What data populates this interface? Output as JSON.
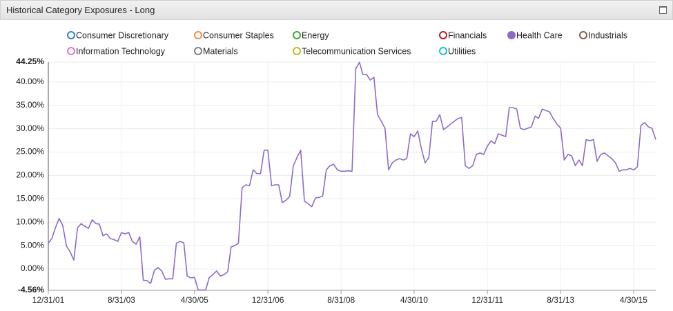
{
  "chart_data": {
    "type": "line",
    "title": "Historical Category Exposures - Long",
    "x": [
      "12/31/01",
      "1/31/02",
      "2/28/02",
      "3/31/02",
      "4/30/02",
      "5/31/02",
      "6/30/02",
      "7/31/02",
      "8/31/02",
      "9/30/02",
      "10/31/02",
      "11/30/02",
      "12/31/02",
      "1/31/03",
      "2/28/03",
      "3/31/03",
      "4/30/03",
      "5/31/03",
      "6/30/03",
      "7/31/03",
      "8/31/03",
      "9/30/03",
      "10/31/03",
      "11/30/03",
      "12/31/03",
      "1/31/04",
      "2/29/04",
      "3/31/04",
      "4/30/04",
      "5/31/04",
      "6/30/04",
      "7/31/04",
      "8/31/04",
      "9/30/04",
      "10/31/04",
      "11/30/04",
      "12/31/04",
      "1/31/05",
      "2/28/05",
      "3/31/05",
      "4/30/05",
      "5/31/05",
      "6/30/05",
      "7/31/05",
      "8/31/05",
      "9/30/05",
      "10/31/05",
      "11/30/05",
      "12/31/05",
      "1/31/06",
      "2/28/06",
      "3/31/06",
      "4/30/06",
      "5/31/06",
      "6/30/06",
      "7/31/06",
      "8/31/06",
      "9/30/06",
      "10/31/06",
      "11/30/06",
      "12/31/06",
      "1/31/07",
      "2/28/07",
      "3/31/07",
      "4/30/07",
      "5/31/07",
      "6/30/07",
      "7/31/07",
      "8/31/07",
      "9/30/07",
      "10/31/07",
      "11/30/07",
      "12/31/07",
      "1/31/08",
      "2/29/08",
      "3/31/08",
      "4/30/08",
      "5/31/08",
      "6/30/08",
      "7/31/08",
      "8/31/08",
      "9/30/08",
      "10/31/08",
      "11/30/08",
      "12/31/08",
      "1/31/09",
      "2/28/09",
      "3/31/09",
      "4/30/09",
      "5/31/09",
      "6/30/09",
      "7/31/09",
      "8/31/09",
      "9/30/09",
      "10/31/09",
      "11/30/09",
      "12/31/09",
      "1/31/10",
      "2/28/10",
      "3/31/10",
      "4/30/10",
      "5/31/10",
      "6/30/10",
      "7/31/10",
      "8/31/10",
      "9/30/10",
      "10/31/10",
      "11/30/10",
      "12/31/10",
      "1/31/11",
      "2/28/11",
      "3/31/11",
      "4/30/11",
      "5/31/11",
      "6/30/11",
      "7/31/11",
      "8/31/11",
      "9/30/11",
      "10/31/11",
      "11/30/11",
      "12/31/11",
      "1/31/12",
      "2/29/12",
      "3/31/12",
      "4/30/12",
      "5/31/12",
      "6/30/12",
      "7/31/12",
      "8/31/12",
      "9/30/12",
      "10/31/12",
      "11/30/12",
      "12/31/12",
      "1/31/13",
      "2/28/13",
      "3/31/13",
      "4/30/13",
      "5/31/13",
      "6/30/13",
      "7/31/13",
      "8/31/13",
      "9/30/13",
      "10/31/13",
      "11/30/13",
      "12/31/13",
      "1/31/14",
      "2/28/14",
      "3/31/14",
      "4/30/14",
      "5/31/14",
      "6/30/14",
      "7/31/14",
      "8/31/14",
      "9/30/14",
      "10/31/14",
      "11/30/14",
      "12/31/14",
      "1/31/15",
      "2/28/15",
      "3/31/15",
      "4/30/15",
      "5/31/15",
      "6/30/15",
      "7/31/15",
      "8/31/15",
      "9/30/15",
      "10/31/15"
    ],
    "series": [
      {
        "name": "Consumer Discretionary",
        "color": "#2f7ed8",
        "visible": false
      },
      {
        "name": "Consumer Staples",
        "color": "#f28f43",
        "visible": false
      },
      {
        "name": "Energy",
        "color": "#3aa63a",
        "visible": false
      },
      {
        "name": "Financials",
        "color": "#c8161d",
        "visible": false
      },
      {
        "name": "Health Care",
        "color": "#8d6ac9",
        "visible": true,
        "values": [
          5.5,
          6.6,
          8.8,
          10.8,
          9.3,
          4.9,
          3.7,
          1.9,
          8.8,
          9.7,
          9.1,
          8.7,
          10.5,
          9.7,
          9.6,
          7.1,
          7.5,
          6.5,
          6.3,
          5.9,
          7.8,
          7.5,
          7.8,
          5.9,
          5.3,
          6.9,
          -2.4,
          -2.5,
          -3.1,
          -0.3,
          0.3,
          -0.4,
          -2.2,
          -2.1,
          -2.1,
          5.5,
          5.9,
          5.6,
          -1.5,
          -1.9,
          -1.8,
          -4.5,
          -4.5,
          -4.5,
          -1.8,
          -1.2,
          -0.4,
          -1.5,
          -1.2,
          -0.6,
          4.7,
          5.0,
          5.5,
          17.4,
          18.0,
          17.8,
          21.2,
          20.4,
          20.4,
          25.4,
          25.4,
          17.8,
          18.0,
          18.0,
          14.2,
          14.7,
          15.5,
          22.1,
          23.9,
          25.4,
          14.5,
          14.0,
          13.3,
          15.2,
          15.3,
          15.6,
          21.2,
          22.1,
          22.4,
          21.2,
          20.9,
          20.9,
          21.0,
          20.9,
          42.8,
          44.2,
          41.6,
          41.6,
          40.4,
          41.0,
          33.0,
          31.6,
          30.1,
          21.2,
          22.7,
          23.3,
          23.6,
          23.3,
          23.6,
          28.9,
          28.3,
          29.5,
          25.7,
          22.7,
          23.9,
          31.6,
          31.6,
          33.0,
          29.8,
          30.4,
          31.0,
          31.6,
          32.2,
          32.4,
          22.1,
          21.5,
          22.1,
          24.5,
          24.8,
          24.5,
          26.3,
          27.4,
          26.8,
          28.9,
          28.6,
          28.3,
          34.5,
          34.5,
          34.2,
          30.1,
          29.8,
          30.1,
          30.4,
          32.7,
          32.2,
          34.2,
          33.9,
          33.6,
          32.2,
          31.0,
          30.1,
          23.3,
          24.5,
          24.2,
          22.1,
          23.3,
          22.1,
          27.7,
          27.4,
          27.7,
          23.0,
          24.5,
          24.8,
          24.2,
          23.6,
          22.7,
          20.9,
          21.2,
          21.2,
          21.5,
          21.2,
          21.8,
          30.7,
          31.3,
          30.4,
          30.1,
          27.7
        ]
      },
      {
        "name": "Industrials",
        "color": "#8b5a4a",
        "visible": false
      },
      {
        "name": "Information Technology",
        "color": "#e377c2",
        "visible": false
      },
      {
        "name": "Materials",
        "color": "#7f7f7f",
        "visible": false
      },
      {
        "name": "Telecommunication Services",
        "color": "#bcbd22",
        "visible": false
      },
      {
        "name": "Utilities",
        "color": "#17becf",
        "visible": false
      }
    ],
    "xlim": [
      "12/31/01",
      "10/31/15"
    ],
    "xticks": [
      "12/31/01",
      "8/31/03",
      "4/30/05",
      "12/31/06",
      "8/31/08",
      "4/30/10",
      "12/31/11",
      "8/31/13",
      "4/30/15"
    ],
    "ylim": [
      -4.56,
      44.25
    ],
    "yticks": [
      {
        "value": -4.56,
        "label": "-4.56%"
      },
      {
        "value": 0,
        "label": "0.00%"
      },
      {
        "value": 5,
        "label": "5.00%"
      },
      {
        "value": 10,
        "label": "10.00%"
      },
      {
        "value": 15,
        "label": "15.00%"
      },
      {
        "value": 20,
        "label": "20.00%"
      },
      {
        "value": 25,
        "label": "25.00%"
      },
      {
        "value": 30,
        "label": "30.00%"
      },
      {
        "value": 35,
        "label": "35.00%"
      },
      {
        "value": 40,
        "label": "40.00%"
      },
      {
        "value": 44.25,
        "label": "44.25%"
      }
    ],
    "grid": true
  }
}
